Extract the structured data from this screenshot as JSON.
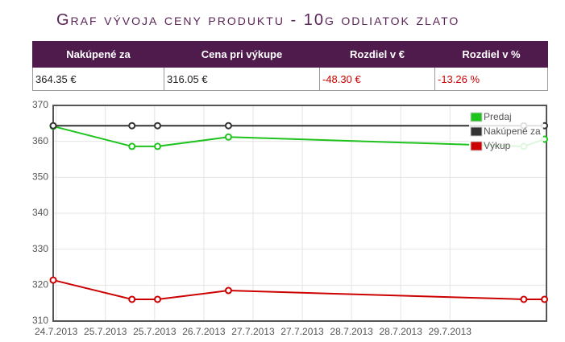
{
  "header": {
    "title": "Graf vývoja ceny produktu - 10g odliatok zlato"
  },
  "table": {
    "columns": [
      "Nakúpené za",
      "Cena pri výkupe",
      "Rozdiel v €",
      "Rozdiel v %"
    ],
    "rows": [
      [
        "364.35 €",
        "316.05 €",
        "-48.30 €",
        "-13.26 %"
      ]
    ]
  },
  "chart_data": {
    "type": "line",
    "x": [
      23.97,
      24.77,
      25.03,
      25.75,
      28.75,
      28.96
    ],
    "series": [
      {
        "name": "Predaj",
        "color": "#1ec31e",
        "values": [
          364.2,
          358.6,
          358.6,
          361.2,
          358.6,
          360.6
        ]
      },
      {
        "name": "Nakúpené za",
        "color": "#333333",
        "values": [
          364.35,
          364.35,
          364.35,
          364.35,
          364.35,
          364.35
        ]
      },
      {
        "name": "Výkup",
        "color": "#cc0000",
        "values": [
          321.4,
          316.05,
          316.05,
          318.5,
          316.05,
          316.05
        ]
      }
    ],
    "xlim": [
      23.97,
      28.98
    ],
    "xticks": [
      {
        "value": 24,
        "label": "24.7.2013"
      },
      {
        "value": 24.5,
        "label": "25.7.2013"
      },
      {
        "value": 25,
        "label": "25.7.2013"
      },
      {
        "value": 25.5,
        "label": "26.7.2013"
      },
      {
        "value": 26,
        "label": "27.7.2013"
      },
      {
        "value": 26.5,
        "label": "27.7.2013"
      },
      {
        "value": 27,
        "label": "28.7.2013"
      },
      {
        "value": 27.5,
        "label": "28.7.2013"
      },
      {
        "value": 28,
        "label": "29.7.2013"
      }
    ],
    "ylim": [
      310,
      370
    ],
    "yticks": [
      310,
      320,
      330,
      340,
      350,
      360,
      370
    ],
    "grid": true,
    "legend": "top-right"
  }
}
